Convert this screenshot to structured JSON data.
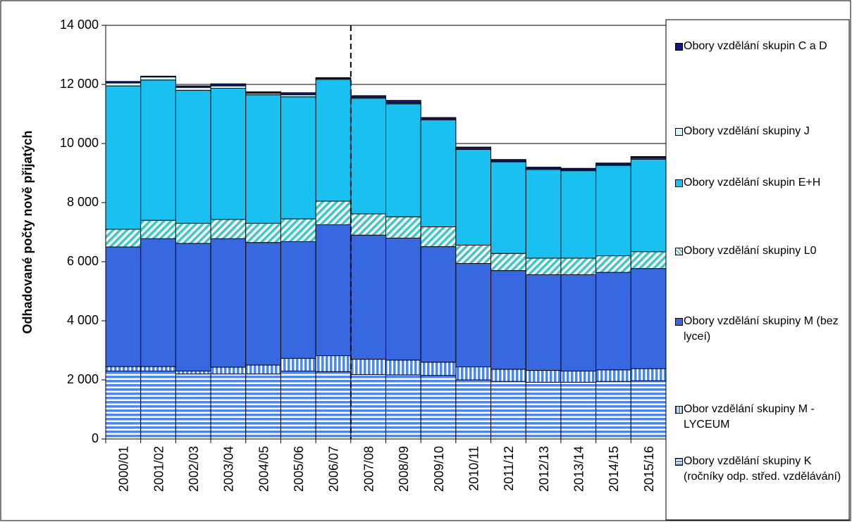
{
  "chart_data": {
    "type": "bar",
    "stacked": true,
    "y_label": "Odhadované počty nově přijatých",
    "categories": [
      "2000/01",
      "2001/02",
      "2002/03",
      "2003/04",
      "2004/05",
      "2005/06",
      "2006/07",
      "2007/08",
      "2008/09",
      "2009/10",
      "2010/11",
      "2011/12",
      "2012/13",
      "2013/14",
      "2014/15",
      "2015/16"
    ],
    "series": [
      {
        "name": "Obory vzdělání skupiny K (ročníky odp. střed. vzdělávání)",
        "color": "#4f86ec",
        "hatch": "horizontal",
        "values": [
          2300,
          2300,
          2200,
          2200,
          2200,
          2300,
          2280,
          2180,
          2170,
          2150,
          2000,
          1950,
          1920,
          1920,
          1950,
          1970
        ]
      },
      {
        "name": "Obor vzdělání skupiny M - LYCEUM",
        "color": "#4f86ec",
        "hatch": "vertical",
        "values": [
          150,
          150,
          100,
          230,
          300,
          430,
          540,
          520,
          500,
          450,
          440,
          410,
          400,
          380,
          390,
          410
        ]
      },
      {
        "name": "Obory vzdělání skupiny M (bez lyceí)",
        "color": "#3868e0",
        "values": [
          4050,
          4330,
          4320,
          4350,
          4150,
          3950,
          4430,
          4200,
          4130,
          3910,
          3500,
          3340,
          3240,
          3260,
          3300,
          3390
        ]
      },
      {
        "name": "Obory vzdělání skupiny L0",
        "color": "#3cc8c8",
        "hatch": "diagonal",
        "values": [
          600,
          620,
          680,
          650,
          650,
          770,
          800,
          720,
          720,
          670,
          620,
          580,
          560,
          560,
          560,
          570
        ]
      },
      {
        "name": "Obory vzdělání skupin E+H",
        "color": "#19c0f0",
        "values": [
          4850,
          4750,
          4500,
          4440,
          4350,
          4130,
          4120,
          3910,
          3820,
          3620,
          3240,
          3100,
          3000,
          2960,
          3060,
          3130
        ]
      },
      {
        "name": "Obory vzdělání skupiny J",
        "color": "#d4f8f8",
        "values": [
          100,
          100,
          100,
          80,
          50,
          70,
          30,
          30,
          30,
          30,
          30,
          20,
          30,
          30,
          30,
          30
        ]
      },
      {
        "name": "Obory vzdělání skupin C a D",
        "color": "#0a1a80",
        "values": [
          50,
          30,
          50,
          70,
          50,
          70,
          30,
          60,
          90,
          50,
          50,
          60,
          50,
          50,
          50,
          60
        ]
      }
    ],
    "ylim": [
      0,
      14000
    ],
    "yticks": [
      0,
      {
        "value": 2000,
        "label": "2 000"
      },
      {
        "value": 4000,
        "label": "4 000"
      },
      {
        "value": 6000,
        "label": "6 000"
      },
      {
        "value": 8000,
        "label": "8 000"
      },
      {
        "value": 10000,
        "label": "10 000"
      },
      {
        "value": 12000,
        "label": "12 000"
      },
      {
        "value": 14000,
        "label": "14 000"
      }
    ],
    "grid": true,
    "legend": "right"
  }
}
